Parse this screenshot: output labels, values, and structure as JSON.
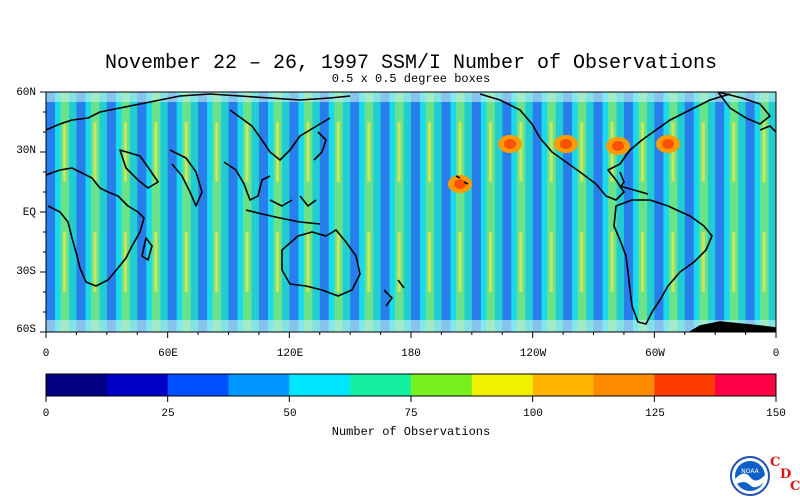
{
  "title": "November 22 – 26, 1997 SSM/I Number of Observations",
  "subtitle": "0.5 x 0.5 degree boxes",
  "lat_labels": [
    "60N",
    "30N",
    "EQ",
    "30S",
    "60S"
  ],
  "lon_labels": [
    "0",
    "60E",
    "120E",
    "180",
    "120W",
    "60W",
    "0"
  ],
  "colorbar": {
    "title": "Number of Observations",
    "tick_labels": [
      "0",
      "25",
      "50",
      "75",
      "100",
      "125",
      "150"
    ],
    "min": 0,
    "max": 150,
    "colors": [
      "#000080",
      "#0000c8",
      "#0050ff",
      "#0096ff",
      "#00e6ff",
      "#14f0a0",
      "#78f01e",
      "#f0f000",
      "#ffb400",
      "#ff8c00",
      "#ff3c00",
      "#ff0046"
    ]
  },
  "map": {
    "lat_range": [
      -60,
      60
    ],
    "lon_range": [
      0,
      360
    ],
    "swath_bands": 24,
    "land_color": "#000000",
    "coast_color": "#000000"
  },
  "logo": {
    "emblem_text": "NOAA",
    "letters": [
      "C",
      "D",
      "C"
    ]
  }
}
